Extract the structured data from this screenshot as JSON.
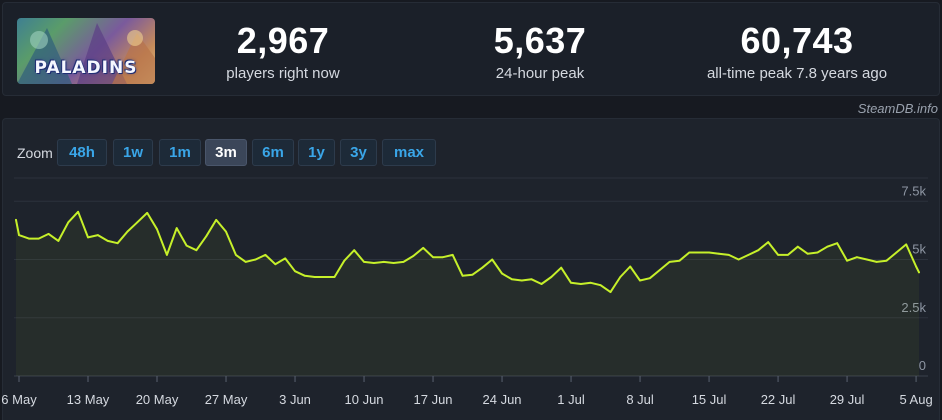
{
  "game": {
    "logo_text": "PALADINS"
  },
  "stats": [
    {
      "value": "2,967",
      "label": "players right now"
    },
    {
      "value": "5,637",
      "label": "24-hour peak"
    },
    {
      "value": "60,743",
      "label": "all-time peak 7.8 years ago"
    }
  ],
  "credit": "SteamDB.info",
  "zoom": {
    "label": "Zoom",
    "options": [
      "48h",
      "1w",
      "1m",
      "3m",
      "6m",
      "1y",
      "3y",
      "max"
    ],
    "selected": "3m"
  },
  "colors": {
    "line": "#c6f02a",
    "accent": "#3aa6e8",
    "background": "#171a21"
  },
  "chart_data": {
    "type": "line",
    "title": "",
    "xlabel": "",
    "ylabel": "",
    "ylim": [
      0,
      8500
    ],
    "yticks": [
      0,
      2500,
      5000,
      7500
    ],
    "ytick_labels": [
      "0",
      "2.5k",
      "5k",
      "7.5k"
    ],
    "xlim": [
      0,
      91.5
    ],
    "xtick_positions": [
      0,
      7,
      14,
      21,
      28,
      35,
      42,
      49,
      56,
      63,
      70,
      77,
      84,
      91
    ],
    "xtick_labels": [
      "6 May",
      "13 May",
      "20 May",
      "27 May",
      "3 Jun",
      "10 Jun",
      "17 Jun",
      "24 Jun",
      "1 Jul",
      "8 Jul",
      "15 Jul",
      "22 Jul",
      "29 Jul",
      "5 Aug"
    ],
    "grid": true,
    "series": [
      {
        "name": "",
        "x": [
          -0.3,
          0,
          1,
          2,
          3,
          4,
          5,
          6,
          7,
          8,
          9,
          10,
          11,
          12,
          13,
          14,
          15,
          16,
          17,
          18,
          19,
          20,
          21,
          22,
          23,
          24,
          25,
          26,
          27,
          28,
          29,
          30,
          31,
          32,
          33,
          34,
          35,
          36,
          37,
          38,
          39,
          40,
          41,
          42,
          43,
          44,
          45,
          46,
          47,
          48,
          49,
          50,
          51,
          52,
          53,
          54,
          55,
          56,
          57,
          58,
          59,
          60,
          61,
          62,
          63,
          64,
          65,
          66,
          67,
          68,
          69,
          70,
          71,
          72,
          73,
          74,
          75,
          76,
          77,
          78,
          79,
          80,
          81,
          82,
          83,
          84,
          85,
          86,
          87,
          88,
          89,
          90,
          91,
          91.3
        ],
        "values": [
          6700,
          6050,
          5900,
          5900,
          6100,
          5800,
          6600,
          7050,
          5950,
          6050,
          5800,
          5700,
          6200,
          6600,
          7000,
          6300,
          5200,
          6350,
          5600,
          5400,
          6000,
          6700,
          6200,
          5200,
          4900,
          5000,
          5200,
          4800,
          5050,
          4500,
          4300,
          4250,
          4250,
          4250,
          4950,
          5400,
          4900,
          4850,
          4900,
          4850,
          4900,
          5150,
          5500,
          5100,
          5100,
          5200,
          4300,
          4350,
          4650,
          5000,
          4400,
          4150,
          4100,
          4150,
          3950,
          4250,
          4650,
          4000,
          3950,
          4000,
          3900,
          3600,
          4250,
          4700,
          4100,
          4200,
          4550,
          4900,
          4950,
          5300,
          5300,
          5300,
          5250,
          5200,
          5000,
          5200,
          5400,
          5750,
          5200,
          5200,
          5550,
          5250,
          5300,
          5550,
          5700,
          4950,
          5100,
          5000,
          4900,
          4950,
          5300,
          5650,
          4700,
          4450
        ]
      }
    ]
  }
}
